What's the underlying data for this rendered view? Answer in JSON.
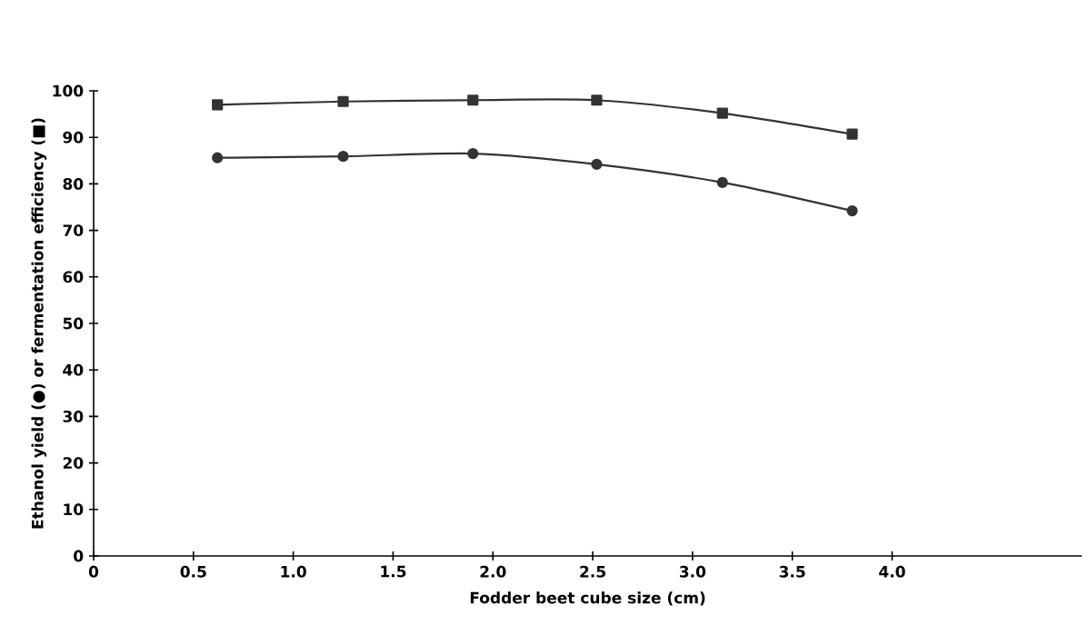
{
  "chart_data": {
    "type": "line",
    "xlabel": "Fodder beet cube size (cm)",
    "ylabel": "Ethanol yield (●) or fermentation efficiency (■)",
    "x": [
      0.62,
      1.25,
      1.9,
      2.52,
      3.15,
      3.8
    ],
    "series": [
      {
        "color": "#333333",
        "marker": "square",
        "values": [
          97,
          97.7,
          98,
          98,
          95.2,
          90.7
        ]
      },
      {
        "color": "#333333",
        "marker": "circle",
        "values": [
          85.6,
          85.9,
          86.5,
          84.2,
          80.3,
          74.2
        ]
      }
    ],
    "xlim": [
      0,
      4.95
    ],
    "ylim": [
      0,
      100
    ],
    "xticks": [
      0,
      0.5,
      {
        "value": 1,
        "label": "1.0"
      },
      1.5,
      {
        "value": 2,
        "label": "2.0"
      },
      2.5,
      {
        "value": 3,
        "label": "3.0"
      },
      3.5,
      {
        "value": 4,
        "label": "4.0"
      }
    ],
    "yticks": [
      0,
      10,
      20,
      30,
      40,
      50,
      60,
      70,
      80,
      90,
      100
    ]
  }
}
